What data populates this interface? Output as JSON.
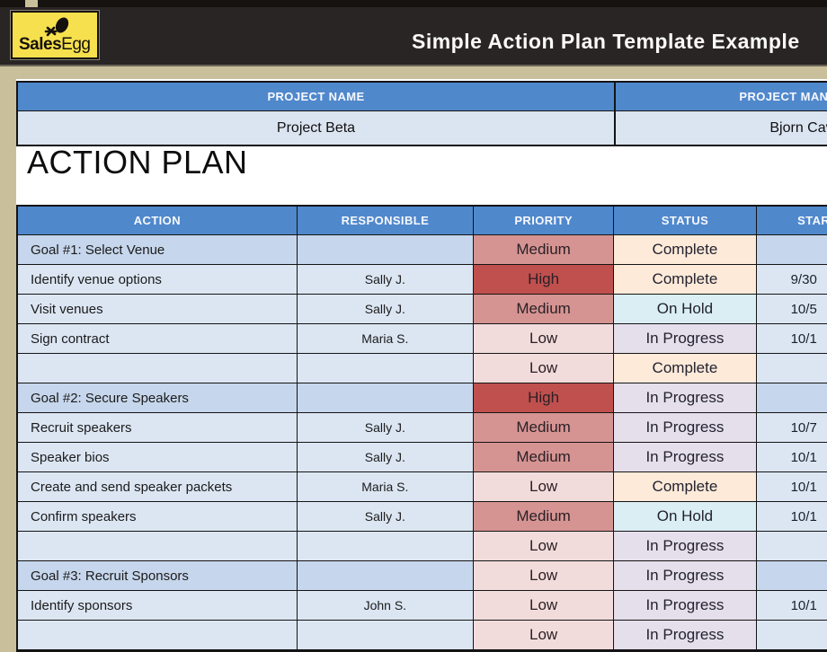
{
  "header": {
    "brand_bold": "Sales",
    "brand_light": "Egg",
    "title": "Simple Action Plan Template Example"
  },
  "project": {
    "name_label": "PROJECT NAME",
    "manager_label": "PROJECT MANAGER",
    "name_value": "Project Beta",
    "manager_value": "Bjorn Cav"
  },
  "section_title": "ACTION PLAN",
  "table": {
    "columns": [
      "ACTION",
      "RESPONSIBLE",
      "PRIORITY",
      "STATUS",
      "START DATE"
    ],
    "priority_colors": {
      "High": "#c0504d",
      "Medium": "#d59492",
      "Low": "#f2dcdb"
    },
    "status_colors": {
      "Complete": "#fdead9",
      "On Hold": "#daeef3",
      "In Progress": "#e5dfec"
    },
    "rows": [
      {
        "type": "goal",
        "action": "Goal #1:  Select Venue",
        "responsible": "",
        "priority": "Medium",
        "status": "Complete",
        "start": ""
      },
      {
        "type": "task",
        "action": "Identify venue options",
        "responsible": "Sally J.",
        "priority": "High",
        "status": "Complete",
        "start": "9/30"
      },
      {
        "type": "task",
        "action": "Visit venues",
        "responsible": "Sally J.",
        "priority": "Medium",
        "status": "On Hold",
        "start": "10/5"
      },
      {
        "type": "task",
        "action": "Sign contract",
        "responsible": "Maria S.",
        "priority": "Low",
        "status": "In Progress",
        "start": "10/1"
      },
      {
        "type": "task",
        "action": "",
        "responsible": "",
        "priority": "Low",
        "status": "Complete",
        "start": ""
      },
      {
        "type": "goal",
        "action": "Goal #2: Secure Speakers",
        "responsible": "",
        "priority": "High",
        "status": "In Progress",
        "start": ""
      },
      {
        "type": "task",
        "action": "Recruit speakers",
        "responsible": "Sally J.",
        "priority": "Medium",
        "status": "In Progress",
        "start": "10/7"
      },
      {
        "type": "task",
        "action": "Speaker bios",
        "responsible": "Sally J.",
        "priority": "Medium",
        "status": "In Progress",
        "start": "10/1"
      },
      {
        "type": "task",
        "action": "Create and send speaker packets",
        "responsible": "Maria S.",
        "priority": "Low",
        "status": "Complete",
        "start": "10/1"
      },
      {
        "type": "task",
        "action": "Confirm speakers",
        "responsible": "Sally J.",
        "priority": "Medium",
        "status": "On Hold",
        "start": "10/1"
      },
      {
        "type": "task",
        "action": "",
        "responsible": "",
        "priority": "Low",
        "status": "In Progress",
        "start": ""
      },
      {
        "type": "goal",
        "action": "Goal #3: Recruit Sponsors",
        "responsible": "",
        "priority": "Low",
        "status": "In Progress",
        "start": ""
      },
      {
        "type": "task",
        "action": "Identify sponsors",
        "responsible": "John S.",
        "priority": "Low",
        "status": "In Progress",
        "start": "10/1"
      },
      {
        "type": "task",
        "action": "",
        "responsible": "",
        "priority": "Low",
        "status": "In Progress",
        "start": ""
      }
    ]
  },
  "theme": {
    "header_band": "#292525",
    "tan": "#c9c09b",
    "table_header_blue": "#5088cc",
    "goal_row": "#c6d6ec",
    "task_row": "#dce6f3",
    "logo_yellow": "#f6e04e"
  }
}
